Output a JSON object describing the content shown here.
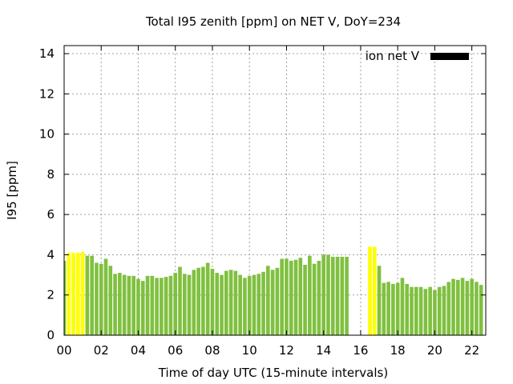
{
  "chart_data": {
    "type": "bar",
    "title": "Total I95 zenith [ppm] on NET V, DoY=234",
    "xlabel": "Time of day UTC (15-minute intervals)",
    "ylabel": "I95 [ppm]",
    "legend": {
      "label": "ion net V",
      "placement": "top-right",
      "color": "#000000"
    },
    "grid": true,
    "xlim": [
      0,
      22.75
    ],
    "ylim": [
      0,
      14.4
    ],
    "xticks": [
      "00",
      "02",
      "04",
      "06",
      "08",
      "10",
      "12",
      "14",
      "16",
      "18",
      "20",
      "22"
    ],
    "yticks": [
      "0",
      "2",
      "4",
      "6",
      "8",
      "10",
      "12",
      "14"
    ],
    "bar_width_hours": 0.2,
    "colors": {
      "normal": "#80c040",
      "flagged": "#ffff00"
    },
    "x": [
      0.0,
      0.25,
      0.5,
      0.75,
      1.0,
      1.25,
      1.5,
      1.75,
      2.0,
      2.25,
      2.5,
      2.75,
      3.0,
      3.25,
      3.5,
      3.75,
      4.0,
      4.25,
      4.5,
      4.75,
      5.0,
      5.25,
      5.5,
      5.75,
      6.0,
      6.25,
      6.5,
      6.75,
      7.0,
      7.25,
      7.5,
      7.75,
      8.0,
      8.25,
      8.5,
      8.75,
      9.0,
      9.25,
      9.5,
      9.75,
      10.0,
      10.25,
      10.5,
      10.75,
      11.0,
      11.25,
      11.5,
      11.75,
      12.0,
      12.25,
      12.5,
      12.75,
      13.0,
      13.25,
      13.5,
      13.75,
      14.0,
      14.25,
      14.5,
      14.75,
      15.0,
      15.25,
      16.5,
      16.75,
      17.0,
      17.25,
      17.5,
      17.75,
      18.0,
      18.25,
      18.5,
      18.75,
      19.0,
      19.25,
      19.5,
      19.75,
      20.0,
      20.25,
      20.5,
      20.75,
      21.0,
      21.25,
      21.5,
      21.75,
      22.0,
      22.25,
      22.5
    ],
    "values": [
      3.7,
      4.1,
      4.1,
      4.1,
      4.15,
      3.95,
      3.95,
      3.6,
      3.55,
      3.8,
      3.45,
      3.05,
      3.1,
      3.0,
      2.95,
      2.95,
      2.8,
      2.7,
      2.95,
      2.95,
      2.85,
      2.85,
      2.9,
      2.95,
      3.1,
      3.4,
      3.05,
      3.0,
      3.25,
      3.35,
      3.4,
      3.6,
      3.3,
      3.1,
      3.0,
      3.2,
      3.25,
      3.2,
      3.0,
      2.85,
      2.95,
      3.0,
      3.05,
      3.15,
      3.45,
      3.25,
      3.35,
      3.8,
      3.8,
      3.7,
      3.75,
      3.85,
      3.5,
      3.95,
      3.55,
      3.7,
      4.0,
      4.0,
      3.9,
      3.9,
      3.9,
      3.9,
      4.4,
      4.4,
      3.45,
      2.6,
      2.65,
      2.55,
      2.6,
      2.85,
      2.55,
      2.4,
      2.4,
      2.4,
      2.3,
      2.4,
      2.25,
      2.4,
      2.45,
      2.65,
      2.8,
      2.75,
      2.85,
      2.7,
      2.8,
      2.65,
      2.5
    ],
    "flagged": [
      false,
      true,
      true,
      true,
      true,
      false,
      false,
      false,
      false,
      false,
      false,
      false,
      false,
      false,
      false,
      false,
      false,
      false,
      false,
      false,
      false,
      false,
      false,
      false,
      false,
      false,
      false,
      false,
      false,
      false,
      false,
      false,
      false,
      false,
      false,
      false,
      false,
      false,
      false,
      false,
      false,
      false,
      false,
      false,
      false,
      false,
      false,
      false,
      false,
      false,
      false,
      false,
      false,
      false,
      false,
      false,
      false,
      false,
      false,
      false,
      false,
      false,
      true,
      true,
      false,
      false,
      false,
      false,
      false,
      false,
      false,
      false,
      false,
      false,
      false,
      false,
      false,
      false,
      false,
      false,
      false,
      false,
      false,
      false,
      false,
      false,
      false
    ]
  }
}
